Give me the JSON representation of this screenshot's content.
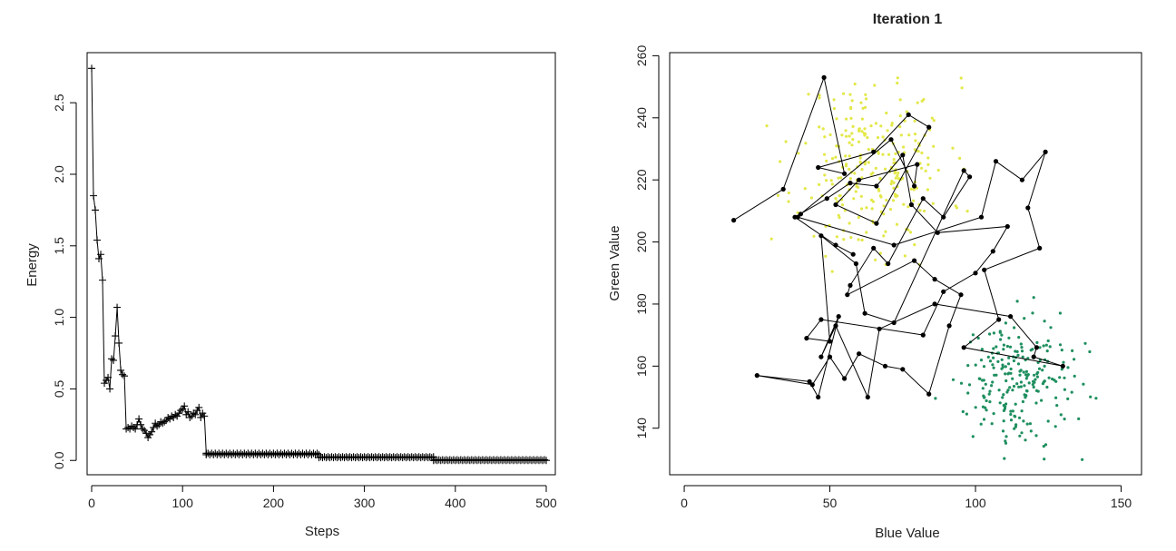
{
  "chart_data": [
    {
      "type": "line",
      "title": "",
      "xlabel": "Steps",
      "ylabel": "Energy",
      "xlim": [
        -5,
        510
      ],
      "ylim": [
        -0.1,
        2.85
      ],
      "xticks": [
        0,
        100,
        200,
        300,
        400,
        500
      ],
      "yticks": [
        0.0,
        0.5,
        1.0,
        1.5,
        2.0,
        2.5
      ],
      "xtick_labels": [
        "0",
        "100",
        "200",
        "300",
        "400",
        "500"
      ],
      "ytick_labels": [
        "0.0",
        "0.5",
        "1.0",
        "1.5",
        "2.0",
        "2.5"
      ],
      "marker": "+",
      "grid": false,
      "series": [
        {
          "x": [
            0,
            2,
            4,
            6,
            8,
            10,
            12,
            14,
            16,
            18,
            20,
            22,
            24,
            26,
            28,
            30,
            32,
            34,
            36,
            38,
            40,
            42,
            44,
            46,
            48,
            50,
            52,
            54,
            56,
            58,
            60,
            62,
            64,
            66,
            68,
            70,
            72,
            74,
            76,
            78,
            80,
            82,
            84,
            86,
            88,
            90,
            92,
            94,
            96,
            98,
            100,
            102,
            104,
            106,
            108,
            110,
            112,
            114,
            116,
            118,
            120,
            122,
            124,
            126
          ],
          "values": [
            2.74,
            1.85,
            1.75,
            1.54,
            1.41,
            1.44,
            1.26,
            0.54,
            0.56,
            0.58,
            0.5,
            0.71,
            0.7,
            0.87,
            1.07,
            0.82,
            0.63,
            0.6,
            0.59,
            0.22,
            0.23,
            0.22,
            0.24,
            0.23,
            0.22,
            0.25,
            0.29,
            0.25,
            0.22,
            0.21,
            0.19,
            0.16,
            0.18,
            0.2,
            0.23,
            0.26,
            0.24,
            0.25,
            0.27,
            0.26,
            0.27,
            0.28,
            0.3,
            0.29,
            0.31,
            0.3,
            0.32,
            0.31,
            0.33,
            0.35,
            0.36,
            0.38,
            0.32,
            0.34,
            0.3,
            0.31,
            0.33,
            0.32,
            0.35,
            0.37,
            0.3,
            0.33,
            0.31,
            0.05
          ]
        },
        {
          "x_range": [
            126,
            250
          ],
          "values": [
            0.04,
            0.05,
            0.04,
            0.05,
            0.04,
            0.05,
            0.04,
            0.05,
            0.04,
            0.05,
            0.04,
            0.05,
            0.04,
            0.05,
            0.04,
            0.05,
            0.04,
            0.05,
            0.04,
            0.05,
            0.04,
            0.05,
            0.04,
            0.05,
            0.04,
            0.05,
            0.04,
            0.05,
            0.04,
            0.05,
            0.04,
            0.05,
            0.04,
            0.05,
            0.04,
            0.05,
            0.04,
            0.05,
            0.04,
            0.05,
            0.04,
            0.05,
            0.04,
            0.05,
            0.04,
            0.05,
            0.04,
            0.05,
            0.04,
            0.05,
            0.04,
            0.05,
            0.04,
            0.05,
            0.04,
            0.05,
            0.04,
            0.05,
            0.04,
            0.05,
            0.04,
            0.05,
            0.04
          ]
        },
        {
          "x_range": [
            250,
            376
          ],
          "values": [
            0.02,
            0.025,
            0.02,
            0.025,
            0.02,
            0.025,
            0.02,
            0.025,
            0.02,
            0.025,
            0.02,
            0.025,
            0.02,
            0.025,
            0.02,
            0.025,
            0.02,
            0.025,
            0.02,
            0.025,
            0.02,
            0.025,
            0.02,
            0.025,
            0.02,
            0.025,
            0.02,
            0.025,
            0.02,
            0.025,
            0.02,
            0.025,
            0.02,
            0.025,
            0.02,
            0.025,
            0.02,
            0.025,
            0.02,
            0.025,
            0.02,
            0.025,
            0.02,
            0.025,
            0.02,
            0.025,
            0.02,
            0.025,
            0.02,
            0.025,
            0.02,
            0.025,
            0.02,
            0.025,
            0.02,
            0.025,
            0.02,
            0.025,
            0.02,
            0.025,
            0.02,
            0.025,
            0.02,
            0.025
          ]
        },
        {
          "x_range": [
            376,
            500
          ],
          "values": [
            0.0,
            0.005,
            0.0,
            0.005,
            0.0,
            0.005,
            0.0,
            0.005,
            0.0,
            0.005,
            0.0,
            0.005,
            0.0,
            0.005,
            0.0,
            0.005,
            0.0,
            0.005,
            0.0,
            0.005,
            0.0,
            0.005,
            0.0,
            0.005,
            0.0,
            0.005,
            0.0,
            0.005,
            0.0,
            0.005,
            0.0,
            0.005,
            0.0,
            0.005,
            0.0,
            0.005,
            0.0,
            0.005,
            0.0,
            0.005,
            0.0,
            0.005,
            0.0,
            0.005,
            0.0,
            0.005,
            0.0,
            0.005,
            0.0,
            0.005,
            0.0,
            0.005,
            0.0,
            0.005,
            0.0,
            0.005,
            0.0,
            0.005,
            0.0,
            0.005,
            0.0,
            0.005,
            0.0
          ]
        }
      ]
    },
    {
      "type": "scatter",
      "title": "Iteration  1",
      "xlabel": "Blue Value",
      "ylabel": "Green Value",
      "xlim": [
        -5,
        157
      ],
      "ylim": [
        125,
        261
      ],
      "xticks": [
        0,
        50,
        100,
        150
      ],
      "yticks": [
        140,
        160,
        180,
        200,
        220,
        240,
        260
      ],
      "xtick_labels": [
        "0",
        "50",
        "100",
        "150"
      ],
      "ytick_labels": [
        "140",
        "160",
        "180",
        "200",
        "220",
        "240",
        "260"
      ],
      "grid": false,
      "clusters": [
        {
          "color": "#e3e84a",
          "center": [
            65,
            225
          ],
          "spread": [
            13,
            14
          ],
          "count": 260,
          "seed": 11
        },
        {
          "color": "#1f8f5f",
          "center": [
            113,
            156
          ],
          "spread": [
            10,
            10
          ],
          "count": 230,
          "seed": 29
        }
      ],
      "path": {
        "color": "#000000",
        "points": [
          [
            17,
            207
          ],
          [
            34,
            217
          ],
          [
            48,
            253
          ],
          [
            55,
            222
          ],
          [
            46,
            224
          ],
          [
            65,
            229
          ],
          [
            77,
            241
          ],
          [
            84,
            237
          ],
          [
            66,
            206
          ],
          [
            52,
            212
          ],
          [
            60,
            220
          ],
          [
            80,
            225
          ],
          [
            79,
            218
          ],
          [
            71,
            233
          ],
          [
            40,
            209
          ],
          [
            39,
            208
          ],
          [
            72,
            199
          ],
          [
            102,
            208
          ],
          [
            107,
            226
          ],
          [
            116,
            220
          ],
          [
            124,
            229
          ],
          [
            118,
            211
          ],
          [
            122,
            198
          ],
          [
            103,
            191
          ],
          [
            108,
            175
          ],
          [
            96,
            166
          ],
          [
            130,
            160
          ],
          [
            120,
            163
          ],
          [
            121,
            166
          ],
          [
            112,
            176
          ],
          [
            86,
            180
          ],
          [
            67,
            172
          ],
          [
            63,
            150
          ],
          [
            52,
            173
          ],
          [
            47,
            163
          ],
          [
            53,
            176
          ],
          [
            46,
            150
          ],
          [
            43,
            155
          ],
          [
            25,
            157
          ],
          [
            44,
            154
          ],
          [
            50,
            163
          ],
          [
            55,
            156
          ],
          [
            60,
            164
          ],
          [
            69,
            160
          ],
          [
            75,
            159
          ],
          [
            84,
            151
          ],
          [
            91,
            173
          ],
          [
            95,
            183
          ],
          [
            86,
            188
          ],
          [
            79,
            194
          ],
          [
            56,
            183
          ],
          [
            57,
            186
          ],
          [
            65,
            198
          ],
          [
            70,
            193
          ],
          [
            82,
            214
          ],
          [
            89,
            208
          ],
          [
            98,
            221
          ],
          [
            96,
            223
          ],
          [
            72,
            174
          ],
          [
            62,
            177
          ],
          [
            59,
            193
          ],
          [
            47,
            202
          ],
          [
            50,
            168
          ],
          [
            42,
            169
          ],
          [
            47,
            175
          ],
          [
            82,
            170
          ],
          [
            89,
            184
          ],
          [
            100,
            190
          ],
          [
            106,
            197
          ],
          [
            111,
            205
          ],
          [
            87,
            203
          ],
          [
            78,
            212
          ],
          [
            75,
            228
          ],
          [
            66,
            218
          ],
          [
            57,
            219
          ],
          [
            49,
            214
          ],
          [
            38,
            208
          ],
          [
            52,
            199
          ],
          [
            58,
            196
          ]
        ]
      }
    }
  ]
}
